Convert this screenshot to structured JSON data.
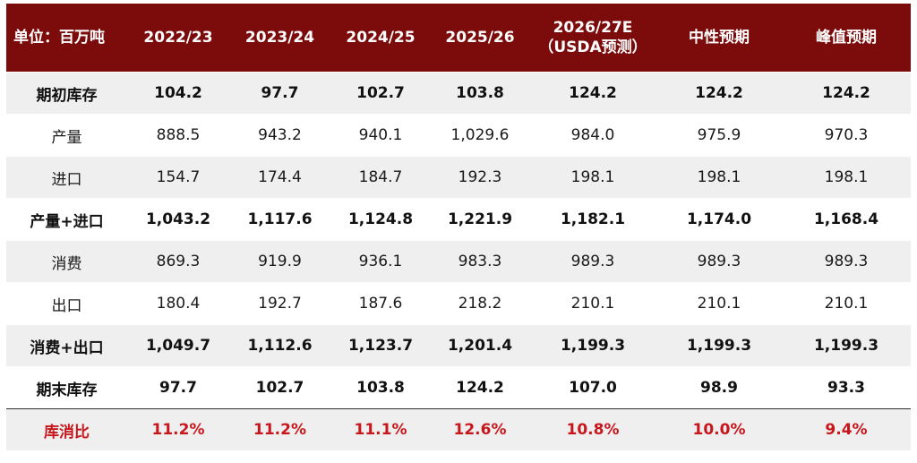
{
  "header": {
    "unit_label": "单位：百万吨",
    "columns": [
      "2022/23",
      "2023/24",
      "2024/25",
      "2025/26",
      "2026/27E",
      "中性预期",
      "峰值预期"
    ],
    "usda_sub": "（USDA预测）"
  },
  "rows": [
    {
      "label": "期初库存",
      "values": [
        "104.2",
        "97.7",
        "102.7",
        "103.8",
        "124.2",
        "124.2",
        "124.2"
      ]
    },
    {
      "label": "产量",
      "values": [
        "888.5",
        "943.2",
        "940.1",
        "1,029.6",
        "984.0",
        "975.9",
        "970.3"
      ]
    },
    {
      "label": "进口",
      "values": [
        "154.7",
        "174.4",
        "184.7",
        "192.3",
        "198.1",
        "198.1",
        "198.1"
      ]
    },
    {
      "label": "产量+进口",
      "values": [
        "1,043.2",
        "1,117.6",
        "1,124.8",
        "1,221.9",
        "1,182.1",
        "1,174.0",
        "1,168.4"
      ]
    },
    {
      "label": "消费",
      "values": [
        "869.3",
        "919.9",
        "936.1",
        "983.3",
        "989.3",
        "989.3",
        "989.3"
      ]
    },
    {
      "label": "出口",
      "values": [
        "180.4",
        "192.7",
        "187.6",
        "218.2",
        "210.1",
        "210.1",
        "210.1"
      ]
    },
    {
      "label": "消费+出口",
      "values": [
        "1,049.7",
        "1,112.6",
        "1,123.7",
        "1,201.4",
        "1,199.3",
        "1,199.3",
        "1,199.3"
      ]
    },
    {
      "label": "期末库存",
      "values": [
        "97.7",
        "102.7",
        "103.8",
        "124.2",
        "107.0",
        "98.9",
        "93.3"
      ]
    },
    {
      "label": "库消比",
      "values": [
        "11.2%",
        "11.2%",
        "11.1%",
        "12.6%",
        "10.8%",
        "10.0%",
        "9.4%"
      ]
    }
  ],
  "colors": {
    "header_bg": "#7c0b0b",
    "header_text": "#ffffff",
    "shade_row": "#efefef",
    "ratio_text": "#c7161c"
  }
}
